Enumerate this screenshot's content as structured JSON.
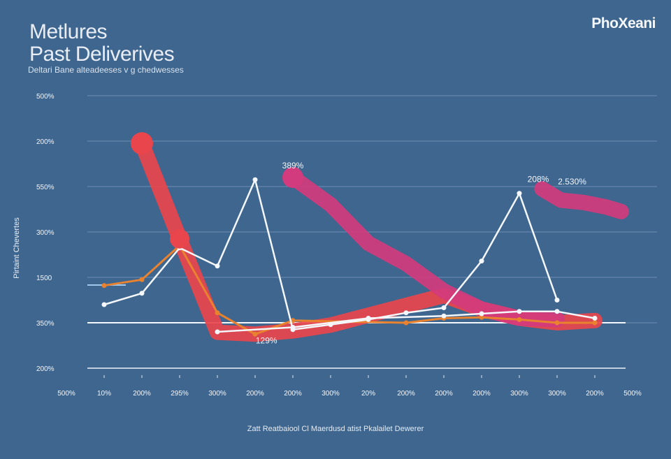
{
  "title_lines": [
    "Metlures",
    "Past Deliverives"
  ],
  "subtitle": "Deltari Bane alteadeeses v g chedwesses",
  "brand": "PhoXeani",
  "colors": {
    "background": "#3f668e",
    "grid": "#6d8fb4",
    "white_line": "#f4f7fb",
    "red": "#e8454c",
    "magenta": "#d23b7d",
    "orange": "#e9822f",
    "light_blue": "#9ec9ec"
  },
  "chart_data": {
    "type": "line",
    "ylabel": "Pirtaint Chevertes",
    "xlabel": "Zatt Reatbaiool Cl Maerdusd atist Pkalailet Dewerer",
    "ytick_labels": [
      "500%",
      "200%",
      "550%",
      "300%",
      "1500",
      "350%",
      "200%"
    ],
    "xtick_labels": [
      "500%",
      "10%",
      "200%",
      "295%",
      "300%",
      "200%",
      "200%",
      "300%",
      "20%",
      "200%",
      "200%",
      "200%",
      "300%",
      "300%",
      "200%",
      "500%"
    ],
    "x": [
      0,
      1,
      2,
      3,
      4,
      5,
      6,
      7,
      8,
      9,
      10,
      11,
      12,
      13,
      14,
      15
    ],
    "ylim": [
      0,
      600
    ],
    "series": [
      {
        "color": "#f4f7fb",
        "style": "thin",
        "points": [
          [
            1,
            140
          ],
          [
            2,
            165
          ],
          [
            3,
            265
          ],
          [
            4,
            225
          ],
          [
            5,
            415
          ],
          [
            6,
            85
          ],
          [
            7,
            96
          ],
          [
            8,
            107
          ],
          [
            9,
            122
          ],
          [
            10,
            133
          ],
          [
            11,
            236
          ],
          [
            12,
            385
          ],
          [
            13,
            150
          ]
        ]
      },
      {
        "color": "#f4f7fb",
        "style": "thin",
        "points": [
          [
            4,
            80
          ],
          [
            6,
            90
          ],
          [
            8,
            110
          ],
          [
            10,
            115
          ],
          [
            11,
            120
          ],
          [
            12,
            125
          ],
          [
            13,
            125
          ],
          [
            14,
            110
          ]
        ]
      },
      {
        "color": "#e8454c",
        "style": "thick",
        "points": [
          [
            2,
            495
          ],
          [
            3,
            285
          ],
          [
            4,
            79
          ],
          [
            5,
            75
          ],
          [
            6,
            82
          ],
          [
            7,
            95
          ],
          [
            10,
            160
          ],
          [
            11,
            130
          ],
          [
            12,
            110
          ],
          [
            13,
            100
          ],
          [
            14,
            105
          ]
        ]
      },
      {
        "color": "#d23b7d",
        "style": "thick",
        "points": [
          [
            6,
            420
          ],
          [
            7,
            360
          ],
          [
            8,
            275
          ],
          [
            9,
            230
          ],
          [
            10,
            170
          ],
          [
            11,
            130
          ],
          [
            12,
            110
          ],
          [
            13,
            107
          ]
        ]
      },
      {
        "color": "#e9822f",
        "style": "medium",
        "points": [
          [
            1,
            182
          ],
          [
            2,
            195
          ],
          [
            3,
            270
          ],
          [
            4,
            122
          ],
          [
            5,
            75
          ],
          [
            6,
            105
          ],
          [
            9,
            100
          ],
          [
            10,
            110
          ],
          [
            11,
            112
          ],
          [
            12,
            107
          ],
          [
            13,
            100
          ],
          [
            14,
            100
          ]
        ]
      },
      {
        "color": "#d23b7d",
        "style": "thick",
        "points": [
          [
            12.6,
            395
          ],
          [
            13.1,
            370
          ],
          [
            13.7,
            365
          ],
          [
            14.3,
            355
          ],
          [
            14.7,
            345
          ]
        ]
      }
    ],
    "annotations": [
      {
        "text": "389%",
        "x": 6.0,
        "y": 440
      },
      {
        "text": "208%",
        "x": 12.5,
        "y": 410
      },
      {
        "text": "2.530%",
        "x": 13.4,
        "y": 405
      },
      {
        "text": "129%",
        "x": 5.3,
        "y": 55
      }
    ],
    "grid": true
  }
}
